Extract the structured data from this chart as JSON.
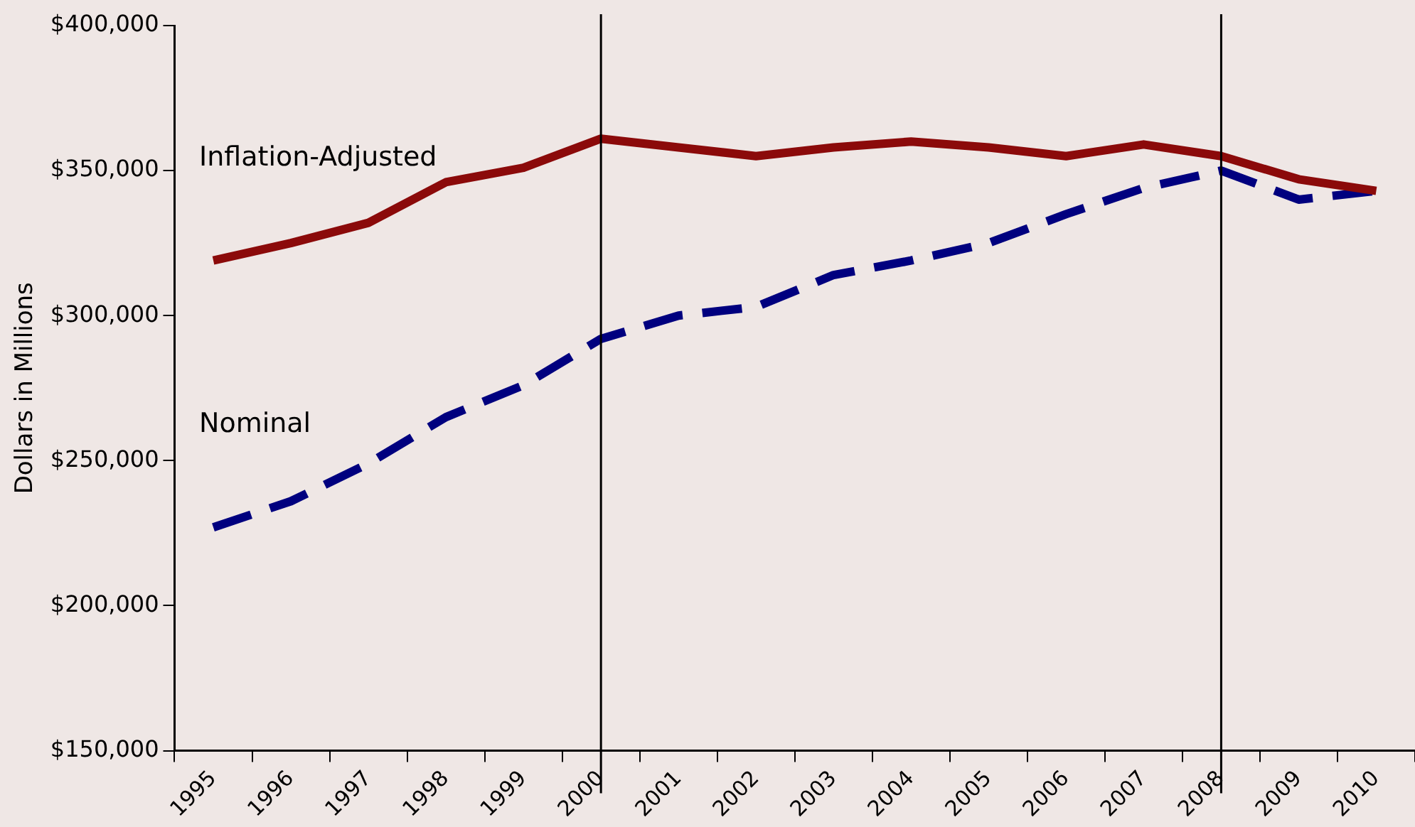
{
  "chart_data": {
    "type": "line",
    "ylabel": "Dollars in Millions",
    "categories": [
      "1995",
      "1996",
      "1997",
      "1998",
      "1999",
      "2000",
      "2001",
      "2002",
      "2003",
      "2004",
      "2005",
      "2006",
      "2007",
      "2008",
      "2009",
      "2010"
    ],
    "series": [
      {
        "name": "Inflation-Adjusted",
        "color": "#8b0a0a",
        "line_style": "solid",
        "values": [
          319000,
          325000,
          332000,
          346000,
          351000,
          361000,
          358000,
          355000,
          358000,
          360000,
          358000,
          355000,
          359000,
          355000,
          347000,
          343000
        ]
      },
      {
        "name": "Nominal",
        "color": "#00007f",
        "line_style": "dashed",
        "values": [
          227000,
          236000,
          249000,
          265000,
          276000,
          292000,
          300000,
          303000,
          314000,
          319000,
          325000,
          335000,
          344000,
          350000,
          340000,
          343000
        ]
      }
    ],
    "ylim": [
      150000,
      400000
    ],
    "yticks": [
      {
        "value": 150000,
        "label": "$150,000"
      },
      {
        "value": 200000,
        "label": "$200,000"
      },
      {
        "value": 250000,
        "label": "$250,000"
      },
      {
        "value": 300000,
        "label": "$300,000"
      },
      {
        "value": 350000,
        "label": "$350,000"
      },
      {
        "value": 400000,
        "label": "$400,000"
      }
    ],
    "ref_lines": [
      {
        "axis": "x",
        "value": "2000",
        "color": "#000000"
      },
      {
        "axis": "x",
        "value": "2008",
        "color": "#000000"
      }
    ],
    "grid": false,
    "legend": false,
    "marker": "none"
  }
}
